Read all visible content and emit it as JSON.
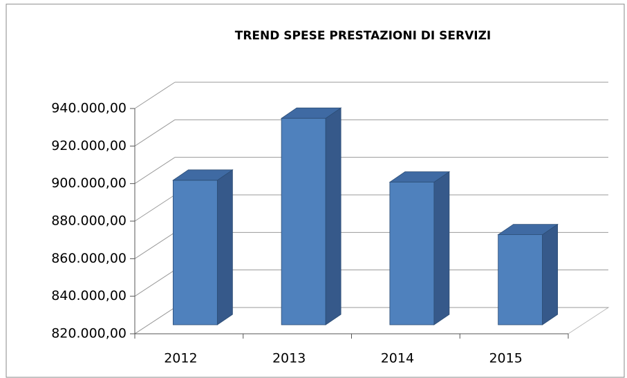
{
  "chart_data": {
    "type": "bar3d",
    "title": "TREND SPESE PRESTAZIONI DI SERVIZI",
    "categories": [
      "2012",
      "2013",
      "2014",
      "2015"
    ],
    "values": [
      897000,
      930000,
      896000,
      868000
    ],
    "color": "#4f81bd",
    "ylim": [
      820000,
      940000
    ],
    "yticks": [
      {
        "value": 820000,
        "label": "820.000,00"
      },
      {
        "value": 840000,
        "label": "840.000,00"
      },
      {
        "value": 860000,
        "label": "860.000,00"
      },
      {
        "value": 880000,
        "label": "880.000,00"
      },
      {
        "value": 900000,
        "label": "900.000,00"
      },
      {
        "value": 920000,
        "label": "920.000,00"
      },
      {
        "value": 940000,
        "label": "940.000,00"
      }
    ],
    "grid": true
  }
}
